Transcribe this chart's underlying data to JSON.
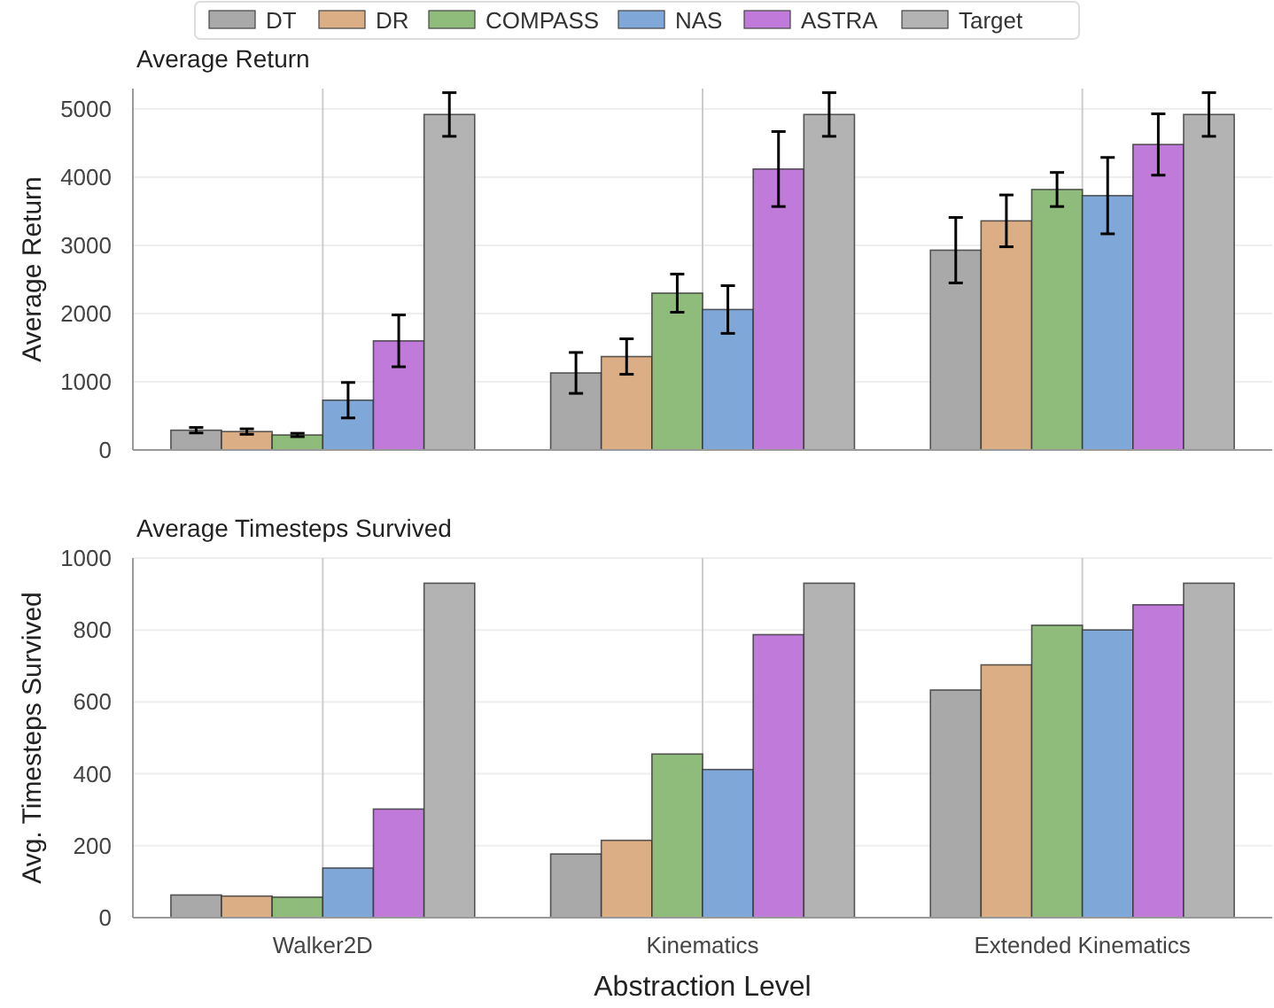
{
  "chart_data": [
    {
      "type": "bar",
      "title": "Average Return",
      "ylabel": "Average Return",
      "categories": [
        null,
        null,
        null
      ],
      "ylim": [
        0,
        5300
      ],
      "yticks": [
        0,
        1000,
        2000,
        3000,
        4000,
        5000
      ],
      "grid": true,
      "legend": "top",
      "tick_labels": "y",
      "series": [
        {
          "name": "DT",
          "color": "#a9a9a9",
          "values": [
            290,
            1130,
            2930
          ],
          "errors": [
            40,
            300,
            480
          ]
        },
        {
          "name": "DR",
          "color": "#dcae85",
          "values": [
            270,
            1370,
            3360
          ],
          "errors": [
            40,
            260,
            380
          ]
        },
        {
          "name": "COMPASS",
          "color": "#8fbb7b",
          "values": [
            220,
            2300,
            3820
          ],
          "errors": [
            25,
            280,
            250
          ]
        },
        {
          "name": "NAS",
          "color": "#7fa8d8",
          "values": [
            730,
            2060,
            3730
          ],
          "errors": [
            260,
            350,
            560
          ]
        },
        {
          "name": "ASTRA",
          "color": "#c07ada",
          "values": [
            1600,
            4120,
            4480
          ],
          "errors": [
            380,
            550,
            450
          ]
        },
        {
          "name": "Target",
          "color": "#b3b3b3",
          "values": [
            4920,
            4920,
            4920
          ],
          "errors": [
            320,
            320,
            320
          ]
        }
      ]
    },
    {
      "type": "bar",
      "title": "Average Timesteps Survived",
      "ylabel": "Avg. Timesteps Survived",
      "xlabel": "Abstraction Level",
      "categories": [
        "Walker2D",
        "Kinematics",
        "Extended Kinematics"
      ],
      "ylim": [
        0,
        1000
      ],
      "yticks": [
        0,
        200,
        400,
        600,
        800,
        1000
      ],
      "grid": true,
      "series": [
        {
          "color": "#a9a9a9",
          "values": [
            63,
            177,
            633
          ]
        },
        {
          "color": "#dcae85",
          "values": [
            60,
            215,
            703
          ]
        },
        {
          "color": "#8fbb7b",
          "values": [
            57,
            455,
            813
          ]
        },
        {
          "color": "#7fa8d8",
          "values": [
            138,
            412,
            800
          ]
        },
        {
          "color": "#c07ada",
          "values": [
            302,
            787,
            870
          ]
        },
        {
          "color": "#b3b3b3",
          "values": [
            930,
            930,
            930
          ]
        }
      ]
    }
  ]
}
